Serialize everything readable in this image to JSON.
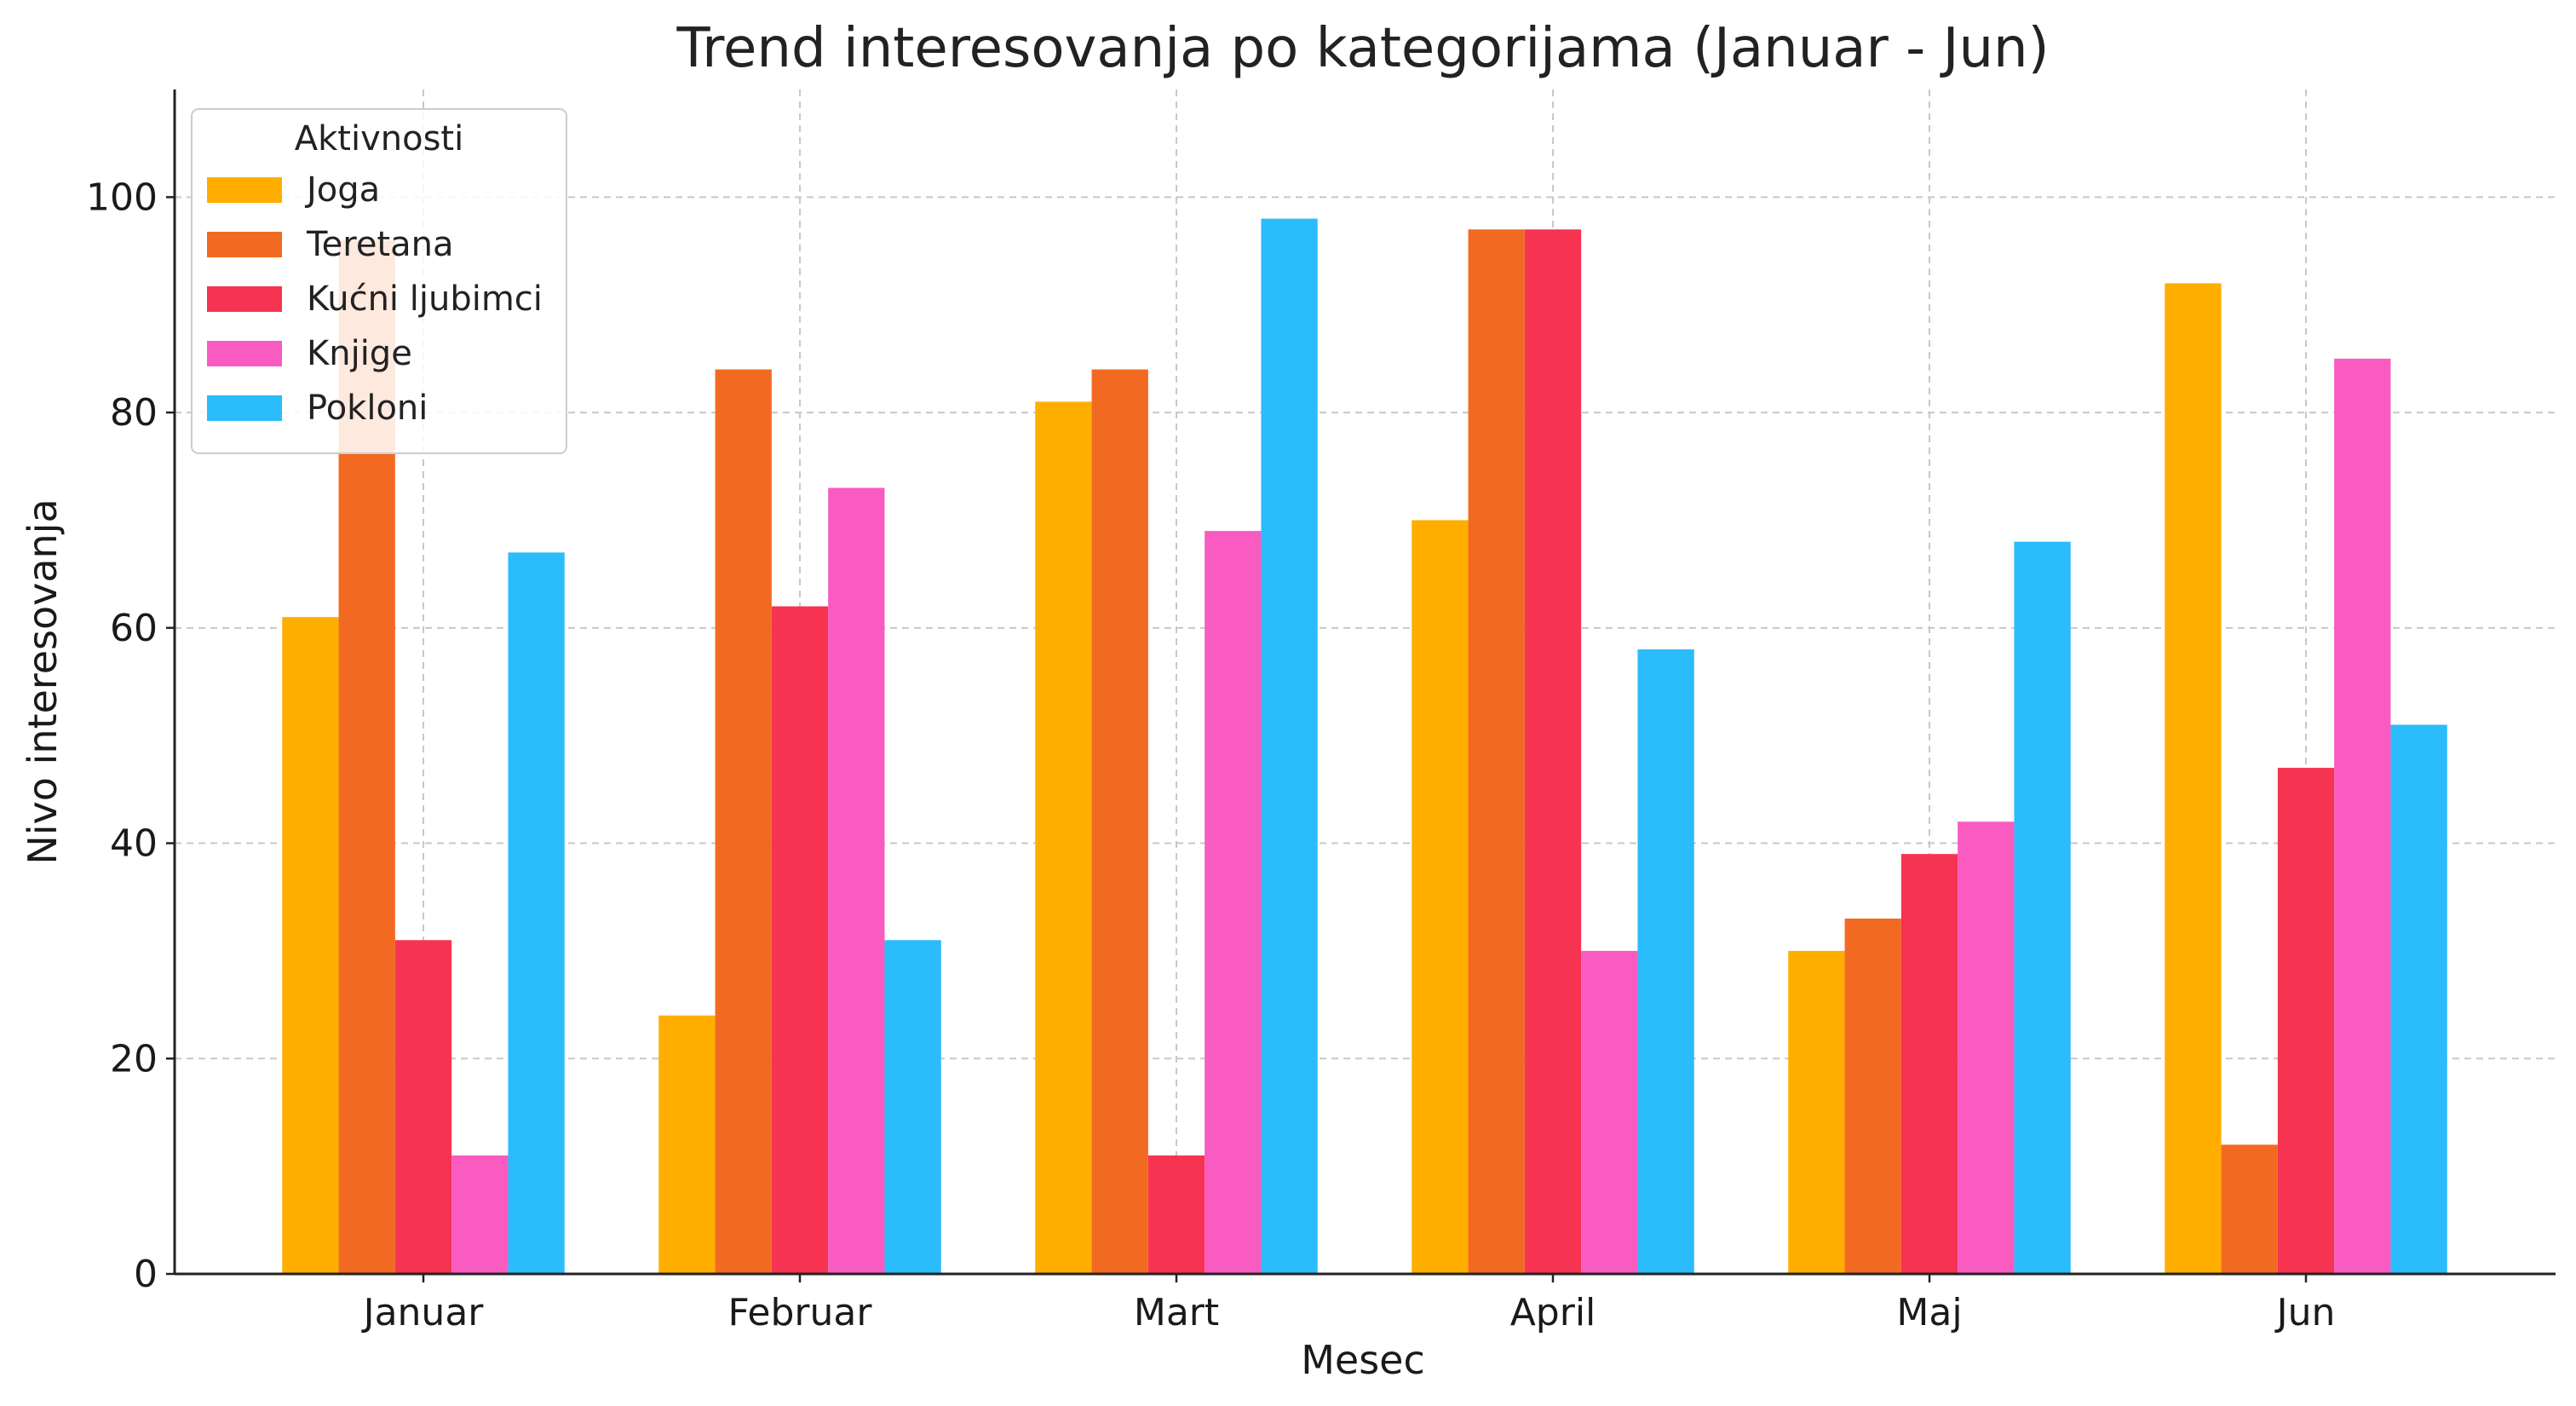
{
  "chart_data": {
    "type": "bar",
    "title": "Trend interesovanja po kategorijama (Januar - Jun)",
    "xlabel": "Mesec",
    "ylabel": "Nivo interesovanja",
    "ylim": [
      0,
      110
    ],
    "yticks": [
      0,
      20,
      40,
      60,
      80,
      100
    ],
    "grid": true,
    "legend": {
      "title": "Aktivnosti",
      "position": "top-left"
    },
    "categories": [
      "Januar",
      "Februar",
      "Mart",
      "April",
      "Maj",
      "Jun"
    ],
    "series": [
      {
        "name": "Joga",
        "color": "#FFAE00",
        "values": [
          61,
          24,
          81,
          70,
          30,
          92
        ]
      },
      {
        "name": "Teretana",
        "color": "#F26A21",
        "values": [
          96,
          84,
          84,
          97,
          33,
          12
        ]
      },
      {
        "name": "Kućni ljubimci",
        "color": "#F63350",
        "values": [
          31,
          62,
          11,
          97,
          39,
          47
        ]
      },
      {
        "name": "Knjige",
        "color": "#F95BC1",
        "values": [
          11,
          73,
          69,
          30,
          42,
          85
        ]
      },
      {
        "name": "Pokloni",
        "color": "#2BBCFB",
        "values": [
          67,
          31,
          98,
          58,
          68,
          51
        ]
      }
    ]
  }
}
